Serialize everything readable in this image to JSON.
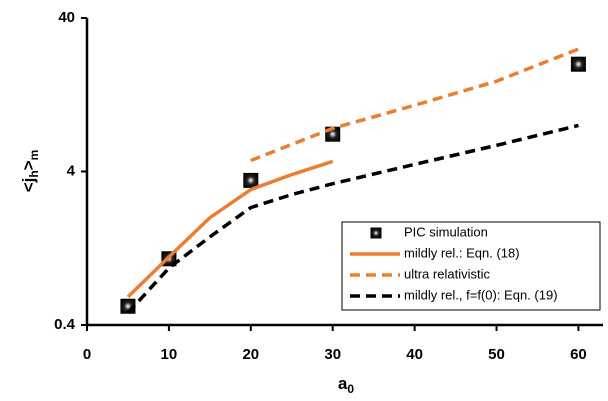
{
  "chart_data": {
    "type": "line",
    "x_label": [
      "a",
      "0"
    ],
    "y_label": [
      "<j",
      "h",
      ">",
      "m"
    ],
    "xlim": [
      0,
      63
    ],
    "xticks": [
      0,
      10,
      20,
      30,
      40,
      50,
      60
    ],
    "ylim": [
      0.4,
      40
    ],
    "yticks": [
      0.4,
      4,
      40
    ],
    "y_scale": "log",
    "grid": false,
    "legend": "lower right",
    "series": [
      {
        "name": "PIC simulation",
        "color": "#000000",
        "style": "markers",
        "x": [
          5,
          10,
          20,
          30,
          60
        ],
        "values": [
          0.53,
          1.08,
          3.5,
          7.0,
          20
        ]
      },
      {
        "name": "mildly rel.: Eqn. (18)",
        "color": "#ED7D31",
        "style": "solid",
        "x": [
          5,
          10,
          15,
          20,
          25,
          30
        ],
        "values": [
          0.61,
          1.11,
          2.0,
          3.05,
          3.82,
          4.65
        ]
      },
      {
        "name": "ultra relativistic",
        "color": "#ED7D31",
        "style": "dashed",
        "x": [
          20,
          30,
          40,
          50,
          60
        ],
        "values": [
          4.72,
          7.64,
          10.8,
          15.5,
          25.1
        ]
      },
      {
        "name": "mildly rel., f=f(0): Eqn. (19)",
        "color": "#000000",
        "style": "dashed",
        "x": [
          5,
          10,
          15,
          20,
          25,
          30,
          40,
          50,
          60
        ],
        "values": [
          0.48,
          0.94,
          1.5,
          2.33,
          2.83,
          3.33,
          4.45,
          5.92,
          7.98
        ]
      }
    ]
  }
}
